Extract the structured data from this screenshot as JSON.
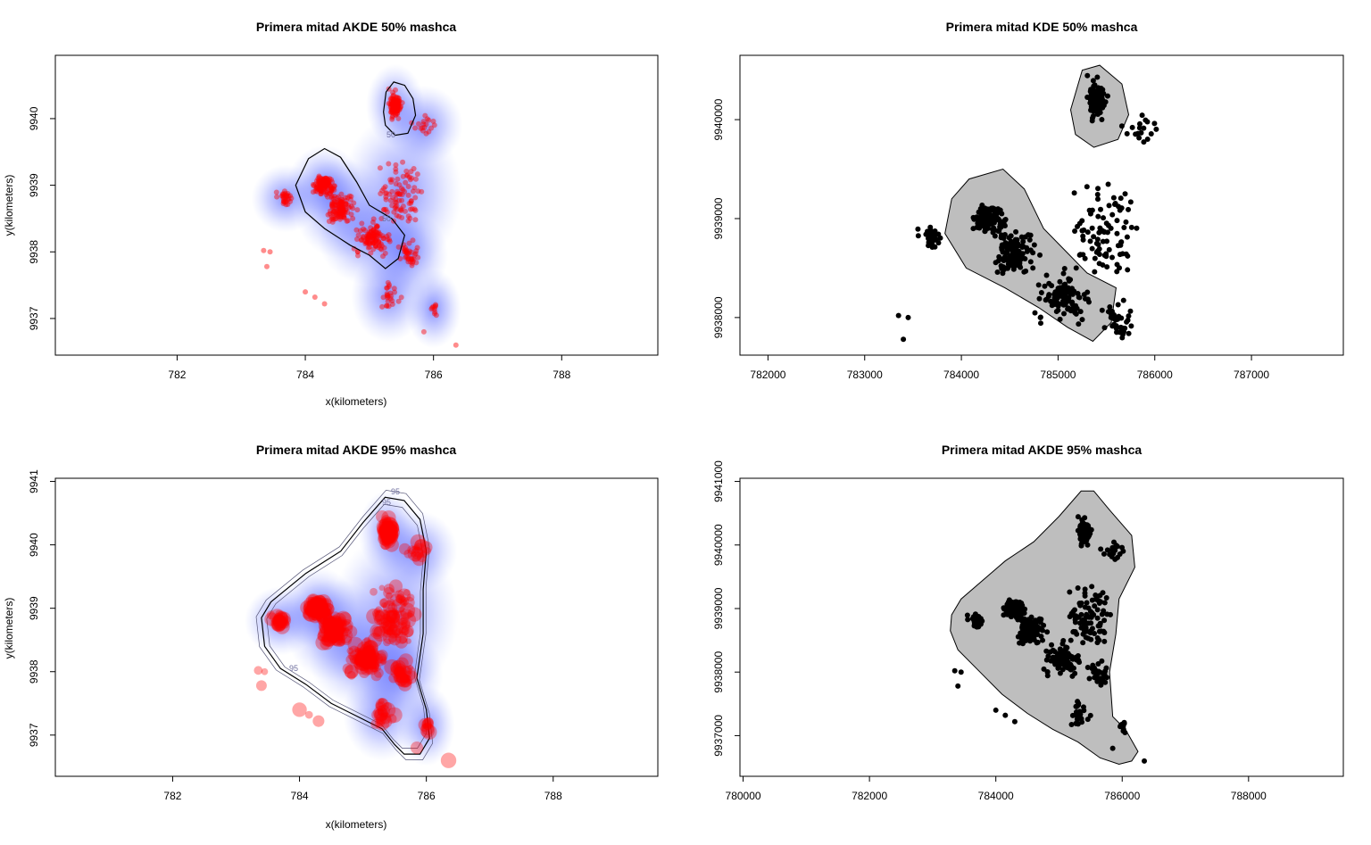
{
  "chart_data": [
    {
      "type": "scatter",
      "title": "Primera mitad AKDE 50% mashca",
      "xlabel": "x(kilometers)",
      "ylabel": "y(kilometers)",
      "xlim": [
        780.1,
        789.5
      ],
      "ylim": [
        9936.45,
        9940.95
      ],
      "x_ticks": [
        "782",
        "784",
        "786",
        "788"
      ],
      "x_tick_values": [
        782,
        784,
        786,
        788
      ],
      "y_ticks": [
        "9937",
        "9938",
        "9939",
        "9940"
      ],
      "y_tick_values": [
        9937,
        9938,
        9939,
        9940
      ],
      "contour_labels": [
        "50",
        "50"
      ],
      "density_color": "#2233ff",
      "point_color": "#ff0000",
      "contour_level": "50%",
      "contours": [
        [
          [
            785.22,
            9940.1
          ],
          [
            785.26,
            9940.4
          ],
          [
            785.38,
            9940.55
          ],
          [
            785.55,
            9940.5
          ],
          [
            785.68,
            9940.3
          ],
          [
            785.72,
            9940.05
          ],
          [
            785.6,
            9939.78
          ],
          [
            785.4,
            9939.75
          ],
          [
            785.25,
            9939.9
          ]
        ],
        [
          [
            783.85,
            9939.0
          ],
          [
            784.05,
            9939.4
          ],
          [
            784.3,
            9939.55
          ],
          [
            784.55,
            9939.42
          ],
          [
            784.8,
            9939.05
          ],
          [
            785.0,
            9938.7
          ],
          [
            785.35,
            9938.5
          ],
          [
            785.55,
            9938.25
          ],
          [
            785.45,
            9937.9
          ],
          [
            785.25,
            9937.75
          ],
          [
            785.0,
            9937.95
          ],
          [
            784.7,
            9938.1
          ],
          [
            784.3,
            9938.35
          ],
          [
            784.0,
            9938.6
          ]
        ]
      ]
    },
    {
      "type": "scatter",
      "title": "Primera mitad KDE 50% mashca",
      "xlabel": "",
      "ylabel": "",
      "xlim": [
        781710,
        787950
      ],
      "ylim": [
        9937620,
        9940650
      ],
      "x_ticks": [
        "782000",
        "783000",
        "784000",
        "785000",
        "786000",
        "787000"
      ],
      "x_tick_values": [
        782000,
        783000,
        784000,
        785000,
        786000,
        787000
      ],
      "y_ticks": [
        "9938000",
        "9939000",
        "9940000"
      ],
      "y_tick_values": [
        9938000,
        9939000,
        9940000
      ],
      "polygon_fill": "#bebebe",
      "point_color": "#000000",
      "polygons": [
        [
          [
            785130,
            9940100
          ],
          [
            785250,
            9940500
          ],
          [
            785430,
            9940550
          ],
          [
            785660,
            9940360
          ],
          [
            785730,
            9940050
          ],
          [
            785620,
            9939800
          ],
          [
            785370,
            9939720
          ],
          [
            785180,
            9939850
          ]
        ],
        [
          [
            783830,
            9938850
          ],
          [
            783900,
            9939200
          ],
          [
            784080,
            9939400
          ],
          [
            784430,
            9939500
          ],
          [
            784650,
            9939300
          ],
          [
            784850,
            9938900
          ],
          [
            785050,
            9938700
          ],
          [
            785300,
            9938450
          ],
          [
            785600,
            9938300
          ],
          [
            785550,
            9937950
          ],
          [
            785360,
            9937760
          ],
          [
            785100,
            9937900
          ],
          [
            784800,
            9938100
          ],
          [
            784450,
            9938300
          ],
          [
            784050,
            9938500
          ]
        ]
      ]
    },
    {
      "type": "scatter",
      "title": "Primera mitad AKDE 95% mashca",
      "xlabel": "x(kilometers)",
      "ylabel": "y(kilometers)",
      "xlim": [
        780.15,
        789.65
      ],
      "ylim": [
        9936.35,
        9941.05
      ],
      "x_ticks": [
        "782",
        "784",
        "786",
        "788"
      ],
      "x_tick_values": [
        782,
        784,
        786,
        788
      ],
      "y_ticks": [
        "9937",
        "9938",
        "9939",
        "9940",
        "9941"
      ],
      "y_tick_values": [
        9937,
        9938,
        9939,
        9940,
        9941
      ],
      "contour_labels": [
        "95",
        "95",
        "95"
      ],
      "density_color": "#2233ff",
      "point_color": "#ff0000",
      "contour_level": "95%",
      "contours": [
        [
          [
            783.4,
            9938.85
          ],
          [
            783.55,
            9939.1
          ],
          [
            784.1,
            9939.55
          ],
          [
            784.65,
            9939.9
          ],
          [
            785.0,
            9940.35
          ],
          [
            785.35,
            9940.75
          ],
          [
            785.65,
            9940.7
          ],
          [
            785.9,
            9940.4
          ],
          [
            786.0,
            9939.9
          ],
          [
            785.95,
            9939.3
          ],
          [
            785.95,
            9938.6
          ],
          [
            785.85,
            9937.9
          ],
          [
            786.0,
            9937.4
          ],
          [
            786.05,
            9936.95
          ],
          [
            785.9,
            9936.7
          ],
          [
            785.65,
            9936.7
          ],
          [
            785.5,
            9936.85
          ],
          [
            785.3,
            9937.1
          ],
          [
            784.9,
            9937.3
          ],
          [
            784.5,
            9937.5
          ],
          [
            784.1,
            9937.8
          ],
          [
            783.7,
            9938.05
          ],
          [
            783.45,
            9938.4
          ]
        ]
      ]
    },
    {
      "type": "scatter",
      "title": "Primera mitad AKDE 95% mashca",
      "xlabel": "",
      "ylabel": "",
      "xlim": [
        779950,
        789500
      ],
      "ylim": [
        9936360,
        9941050
      ],
      "x_ticks": [
        "780000",
        "782000",
        "784000",
        "786000",
        "788000"
      ],
      "x_tick_values": [
        780000,
        782000,
        784000,
        786000,
        788000
      ],
      "y_ticks": [
        "9937000",
        "9938000",
        "9939000",
        "9940000",
        "9941000"
      ],
      "y_tick_values": [
        9937000,
        9938000,
        9939000,
        9940000,
        9941000
      ],
      "polygon_fill": "#bebebe",
      "point_color": "#000000",
      "polygons": [
        [
          [
            783300,
            9938900
          ],
          [
            783450,
            9939150
          ],
          [
            784150,
            9939750
          ],
          [
            784600,
            9940050
          ],
          [
            785000,
            9940450
          ],
          [
            785350,
            9940850
          ],
          [
            785550,
            9940850
          ],
          [
            785800,
            9940550
          ],
          [
            786150,
            9940150
          ],
          [
            786200,
            9939650
          ],
          [
            785950,
            9939150
          ],
          [
            785900,
            9938600
          ],
          [
            785800,
            9938000
          ],
          [
            785850,
            9937300
          ],
          [
            786050,
            9937100
          ],
          [
            786250,
            9936750
          ],
          [
            786150,
            9936600
          ],
          [
            785950,
            9936550
          ],
          [
            785650,
            9936650
          ],
          [
            785300,
            9936900
          ],
          [
            784900,
            9937100
          ],
          [
            784500,
            9937350
          ],
          [
            784100,
            9937650
          ],
          [
            783750,
            9938000
          ],
          [
            783400,
            9938350
          ],
          [
            783280,
            9938650
          ]
        ]
      ]
    }
  ]
}
